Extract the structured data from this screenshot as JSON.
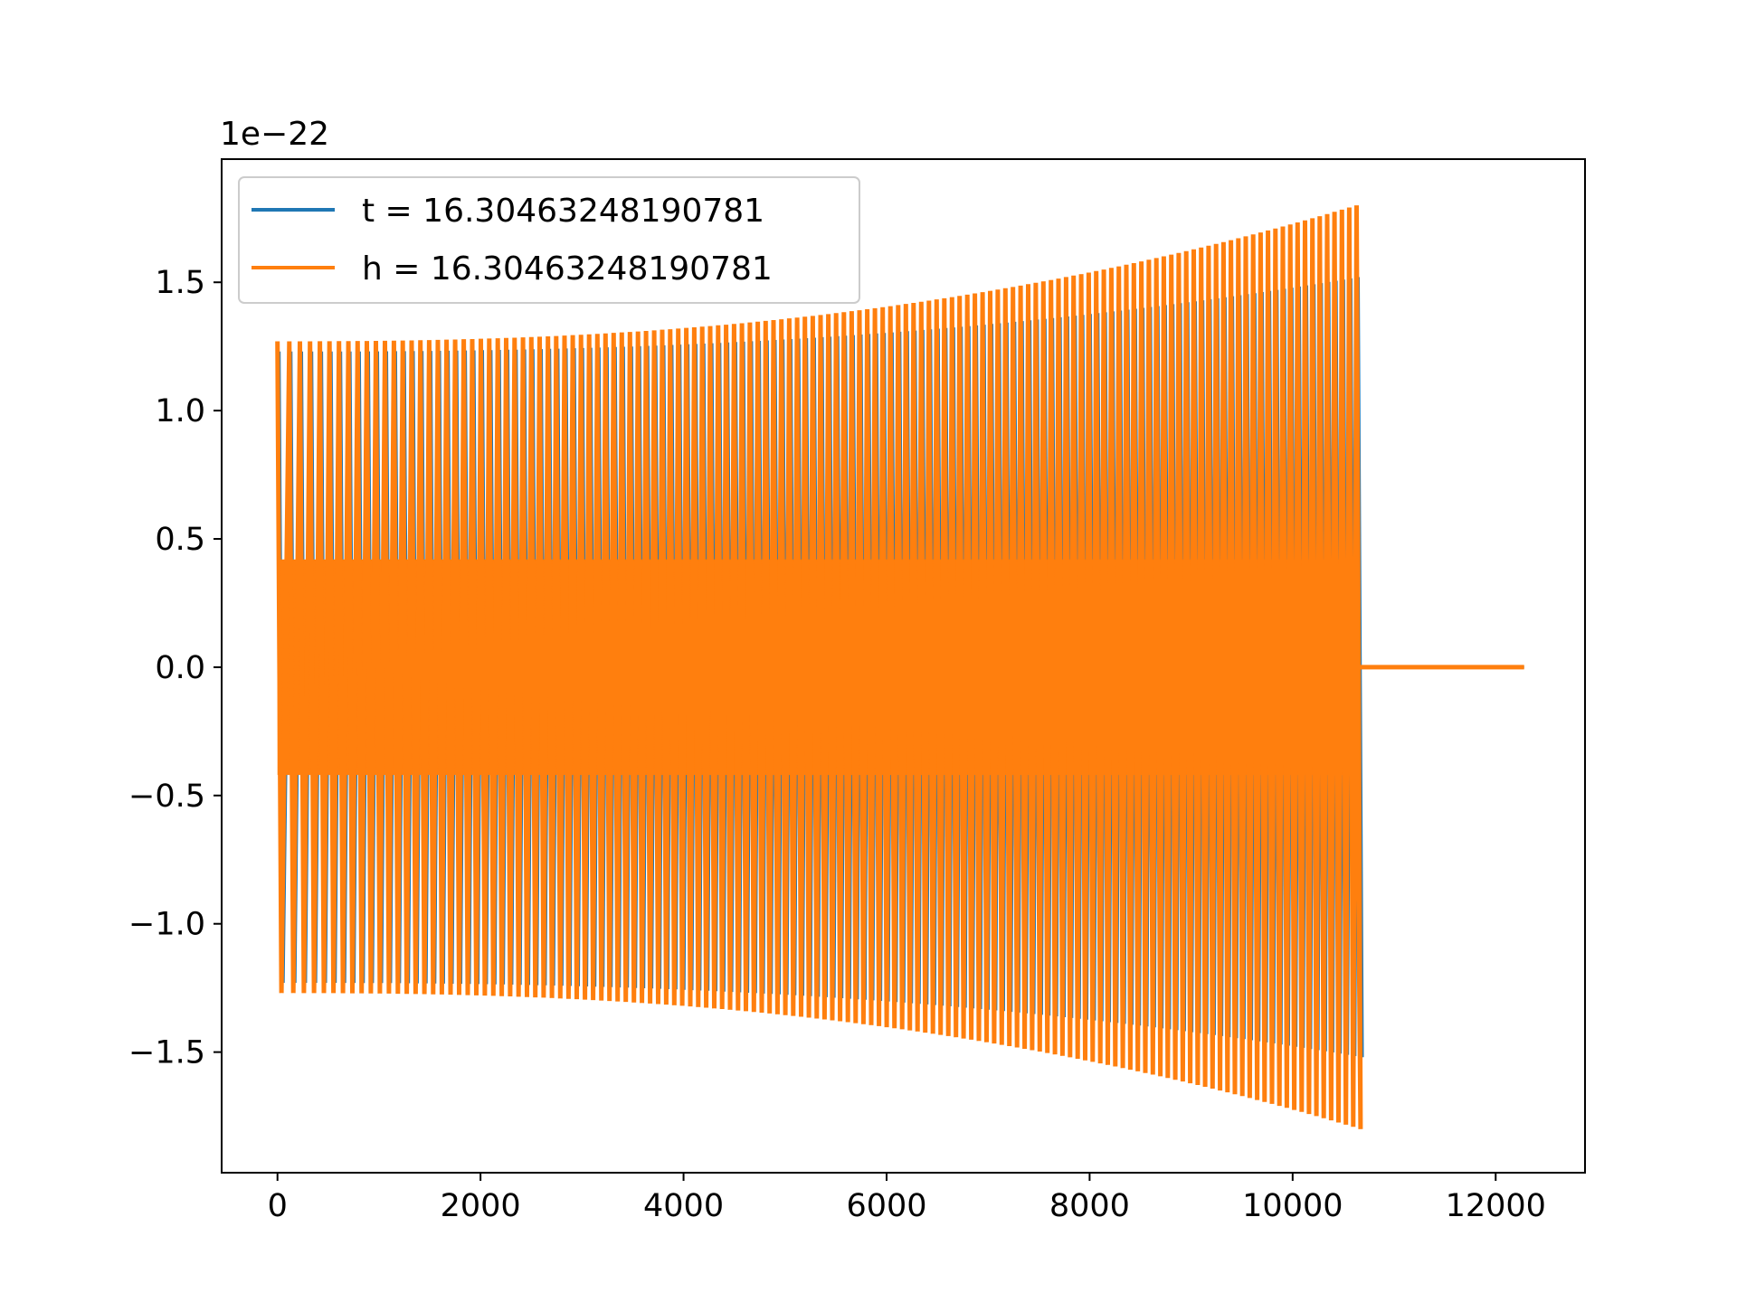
{
  "chart_data": {
    "type": "line",
    "title": "",
    "xlabel": "",
    "ylabel": "",
    "y_offset_label": "1e−22",
    "xlim": [
      -550,
      12880
    ],
    "ylim": [
      -1.97,
      1.98
    ],
    "x_ticks": [
      0,
      2000,
      4000,
      6000,
      8000,
      10000,
      12000
    ],
    "x_tick_labels": [
      "0",
      "2000",
      "4000",
      "6000",
      "8000",
      "10000",
      "12000"
    ],
    "y_ticks": [
      -1.5,
      -1.0,
      -0.5,
      0.0,
      0.5,
      1.0,
      1.5
    ],
    "y_tick_labels": [
      "−1.5",
      "−1.0",
      "−0.5",
      "0.0",
      "0.5",
      "1.0",
      "1.5"
    ],
    "grid": false,
    "legend_position": "top-left",
    "series": [
      {
        "name": "t = 16.30463248190781",
        "color": "#1f77b4",
        "style": "chirp oscillation",
        "x_range": [
          0,
          10630
        ],
        "envelope_start": 1.23,
        "envelope_end": 1.52,
        "tail_end_x": 12280
      },
      {
        "name": "h = 16.30463248190781",
        "color": "#ff7f0e",
        "style": "chirp oscillation",
        "x_range": [
          0,
          10630
        ],
        "envelope_start": 1.27,
        "envelope_end": 1.8,
        "tail_end_x": 12280
      }
    ]
  }
}
